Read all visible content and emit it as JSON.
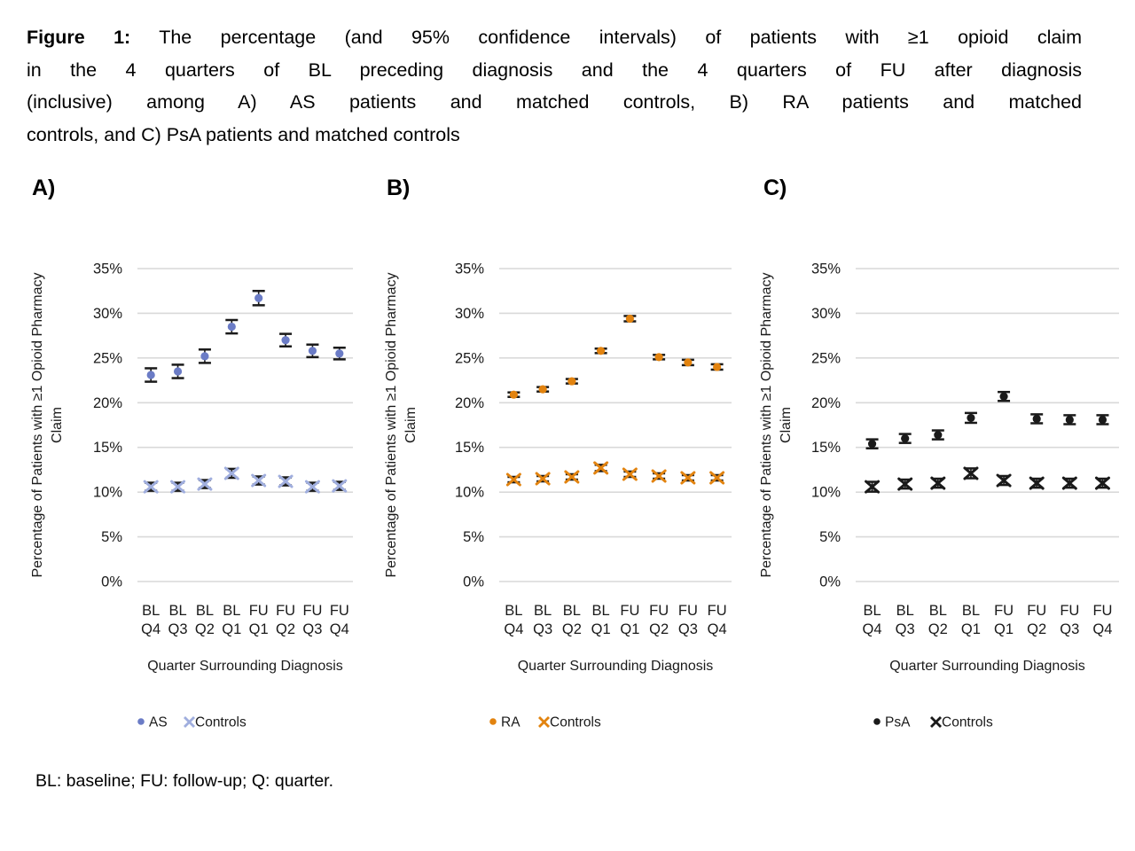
{
  "title": {
    "line1_prefix": "Figure 1:",
    "line1_rest": " The percentage (and 95% confidence intervals) of patients with ≥1 opioid claim",
    "line2": "in the 4 quarters of BL preceding diagnosis and the 4 quarters of FU after diagnosis",
    "line3": "(inclusive) among A) AS patients and matched controls, B) RA patients and matched",
    "line4": "controls, and C) PsA patients and matched controls"
  },
  "footnote": "BL: baseline; FU: follow-up; Q: quarter.",
  "colors": {
    "gridline": "#D9D9D9",
    "error_bar": "#1A1A1A",
    "as_accent": "#6B7CC6",
    "as_controls": "#A0AEDE",
    "ra_accent": "#E2830F",
    "psa_accent": "#1A1A1A"
  },
  "chart_data": [
    {
      "panel_label": "A)",
      "type": "scatter",
      "ylabel_line1": "Percentage of Patients with ≥1 Opioid Pharmacy",
      "ylabel_line2": "Claim",
      "xlabel": "Quarter Surrounding Diagnosis",
      "categories": [
        [
          "BL",
          "Q4"
        ],
        [
          "BL",
          "Q3"
        ],
        [
          "BL",
          "Q2"
        ],
        [
          "BL",
          "Q1"
        ],
        [
          "FU",
          "Q1"
        ],
        [
          "FU",
          "Q2"
        ],
        [
          "FU",
          "Q3"
        ],
        [
          "FU",
          "Q4"
        ]
      ],
      "yticks": [
        35,
        30,
        25,
        20,
        15,
        10,
        5,
        0
      ],
      "ylim": [
        0,
        35
      ],
      "y_unit": "%",
      "legend_position": "bottom",
      "grid": true,
      "series": [
        {
          "name": "AS",
          "marker": "circle",
          "color": "#6B7CC6",
          "values": [
            23.1,
            23.5,
            25.2,
            28.5,
            31.7,
            27.0,
            25.8,
            25.5
          ],
          "ci": [
            0.75,
            0.75,
            0.75,
            0.75,
            0.8,
            0.7,
            0.7,
            0.65
          ]
        },
        {
          "name": "Controls",
          "marker": "x",
          "color": "#A0AEDE",
          "values": [
            10.6,
            10.6,
            10.9,
            12.1,
            11.3,
            11.2,
            10.6,
            10.7
          ],
          "ci": [
            0.45,
            0.45,
            0.45,
            0.5,
            0.45,
            0.45,
            0.45,
            0.45
          ]
        }
      ]
    },
    {
      "panel_label": "B)",
      "type": "scatter",
      "ylabel_line1": "Percentage of Patients with ≥1 Opioid Pharmacy",
      "ylabel_line2": "Claim",
      "xlabel": "Quarter Surrounding Diagnosis",
      "categories": [
        [
          "BL",
          "Q4"
        ],
        [
          "BL",
          "Q3"
        ],
        [
          "BL",
          "Q2"
        ],
        [
          "BL",
          "Q1"
        ],
        [
          "FU",
          "Q1"
        ],
        [
          "FU",
          "Q2"
        ],
        [
          "FU",
          "Q3"
        ],
        [
          "FU",
          "Q4"
        ]
      ],
      "yticks": [
        35,
        30,
        25,
        20,
        15,
        10,
        5,
        0
      ],
      "ylim": [
        0,
        35
      ],
      "y_unit": "%",
      "legend_position": "bottom",
      "grid": true,
      "series": [
        {
          "name": "RA",
          "marker": "circle",
          "color": "#E2830F",
          "values": [
            20.9,
            21.5,
            22.4,
            25.8,
            29.4,
            25.1,
            24.5,
            24.0
          ],
          "ci": [
            0.25,
            0.25,
            0.25,
            0.25,
            0.3,
            0.25,
            0.3,
            0.3
          ]
        },
        {
          "name": "Controls",
          "marker": "x",
          "color": "#E2830F",
          "values": [
            11.4,
            11.5,
            11.7,
            12.7,
            12.0,
            11.8,
            11.6,
            11.6
          ],
          "ci": [
            0.3,
            0.3,
            0.3,
            0.35,
            0.3,
            0.3,
            0.3,
            0.3
          ]
        }
      ]
    },
    {
      "panel_label": "C)",
      "type": "scatter",
      "ylabel_line1": "Percentage of Patients with ≥1 Opioid Pharmacy",
      "ylabel_line2": "Claim",
      "xlabel": "Quarter Surrounding Diagnosis",
      "categories": [
        [
          "BL",
          "Q4"
        ],
        [
          "BL",
          "Q3"
        ],
        [
          "BL",
          "Q2"
        ],
        [
          "BL",
          "Q1"
        ],
        [
          "FU",
          "Q1"
        ],
        [
          "FU",
          "Q2"
        ],
        [
          "FU",
          "Q3"
        ],
        [
          "FU",
          "Q4"
        ]
      ],
      "yticks": [
        35,
        30,
        25,
        20,
        15,
        10,
        5,
        0
      ],
      "ylim": [
        0,
        35
      ],
      "y_unit": "%",
      "legend_position": "bottom",
      "grid": true,
      "series": [
        {
          "name": "PsA",
          "marker": "circle",
          "color": "#1A1A1A",
          "values": [
            15.4,
            16.0,
            16.4,
            18.3,
            20.7,
            18.2,
            18.1,
            18.1
          ],
          "ci": [
            0.5,
            0.5,
            0.5,
            0.55,
            0.5,
            0.5,
            0.5,
            0.5
          ]
        },
        {
          "name": "Controls",
          "marker": "x",
          "color": "#1A1A1A",
          "values": [
            10.6,
            10.9,
            11.0,
            12.1,
            11.3,
            11.0,
            11.0,
            11.0
          ],
          "ci": [
            0.55,
            0.5,
            0.5,
            0.55,
            0.5,
            0.5,
            0.5,
            0.5
          ]
        }
      ]
    }
  ]
}
